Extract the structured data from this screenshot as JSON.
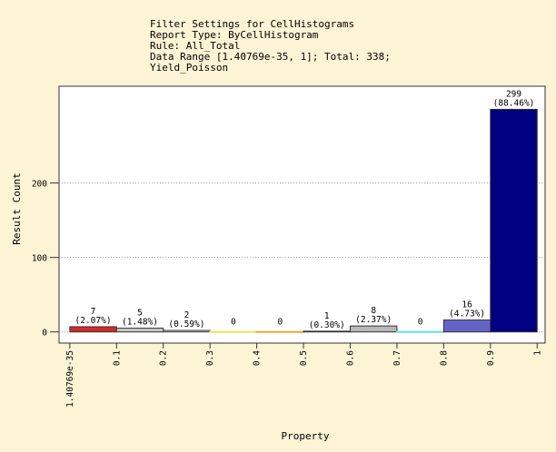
{
  "chart_data": {
    "type": "histogram",
    "title_lines": [
      "Filter Settings for CellHistograms",
      "Report Type: ByCellHistogram",
      "Rule: All_Total",
      "Data Range [1.40769e-35, 1]; Total: 338;",
      "Yield_Poisson"
    ],
    "x_label": "Property",
    "y_label": "Result Count",
    "bins": [
      1.40769e-35,
      0.1,
      0.2,
      0.3,
      0.4,
      0.5,
      0.6,
      0.7,
      0.8,
      0.9,
      1
    ],
    "values": [
      7,
      5,
      2,
      0,
      0,
      1,
      8,
      0,
      16,
      299
    ],
    "percent_labels": [
      "(2.07%)",
      "(1.48%)",
      "(0.59%)",
      null,
      null,
      "(0.30%)",
      "(2.37%)",
      null,
      "(4.73%)",
      "(88.46%)"
    ],
    "colors": [
      "#d42a2a",
      "#c8c8c8",
      "#e8e8e8",
      "#f0e060",
      "#f0a040",
      "#f4f4f4",
      "#b8b8b8",
      "#60e0e0",
      "#6464c8",
      "#000080"
    ],
    "xlim": [
      -0.023,
      1.017
    ],
    "ylim": [
      -15,
      330
    ],
    "yticks": [
      0,
      100,
      200
    ],
    "grid": true
  }
}
